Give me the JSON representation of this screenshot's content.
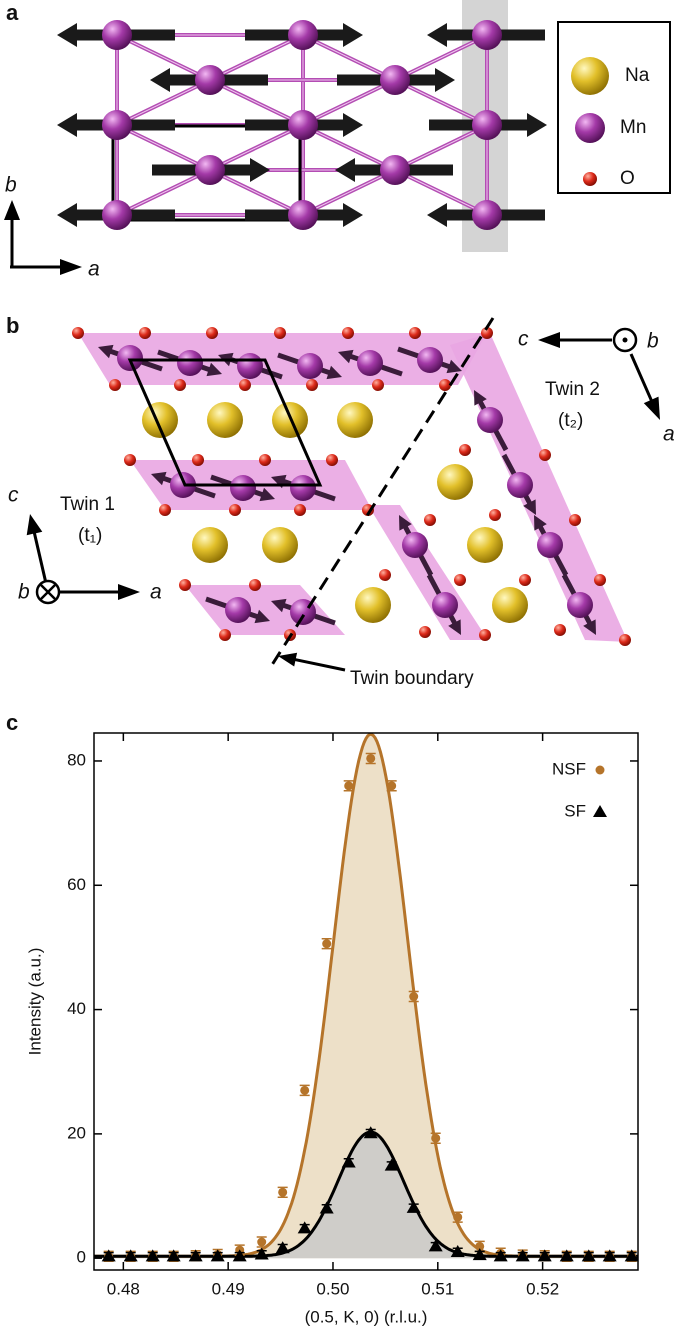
{
  "panel_a": {
    "label": "a",
    "legend": [
      "Na",
      "Mn",
      "O"
    ],
    "axis_b": "b",
    "axis_a": "a"
  },
  "panel_b": {
    "label": "b",
    "compass_left": {
      "c": "c",
      "b": "b",
      "a": "a"
    },
    "compass_right": {
      "c": "c",
      "b": "b",
      "a": "a"
    },
    "twin1": "Twin 1",
    "twin1_sub": "(t₁)",
    "twin2": "Twin 2",
    "twin2_sub": "(t₂)",
    "boundary": "Twin boundary"
  },
  "chart_data": {
    "type": "scatter",
    "panel_label": "c",
    "x_label": "(0.5, K, 0) (r.l.u.)",
    "y_label": "Intensity (a.u.)",
    "xlim": [
      0.4772,
      0.5291
    ],
    "ylim": [
      -1.9,
      84.5
    ],
    "xticks": [
      0.48,
      0.49,
      {
        "value": 0.5,
        "label": "0.50"
      },
      0.51,
      0.52
    ],
    "yticks": [
      0,
      20,
      40,
      60,
      80
    ],
    "legend": "upper right",
    "x": [
      0.4786,
      0.4807,
      0.4828,
      0.4848,
      0.4869,
      0.489,
      0.4911,
      0.4932,
      0.4952,
      0.4973,
      0.4994,
      0.5015,
      0.5036,
      0.5056,
      0.5077,
      0.5098,
      0.5119,
      0.514,
      0.516,
      0.5181,
      0.5202,
      0.5223,
      0.5244,
      0.5264,
      0.5285
    ],
    "series": [
      {
        "name": "NSF",
        "color": "#b5742a",
        "fill": "#ede0c8",
        "marker": "circle",
        "values": [
          0.3,
          0.3,
          0.3,
          0.3,
          0.4,
          0.6,
          1.3,
          2.6,
          10.6,
          27.0,
          50.6,
          76.0,
          80.4,
          76.0,
          42.1,
          19.3,
          6.6,
          1.9,
          0.8,
          0.5,
          0.4,
          0.3,
          0.3,
          0.3,
          0.3
        ],
        "errors": [
          0.8,
          0.8,
          0.8,
          0.8,
          0.8,
          0.8,
          0.8,
          0.8,
          0.8,
          0.8,
          0.8,
          0.8,
          0.8,
          0.8,
          0.8,
          0.8,
          0.8,
          0.8,
          0.8,
          0.8,
          0.8,
          0.8,
          0.8,
          0.8,
          0.8
        ],
        "fit": {
          "center": 0.5036,
          "amplitude": 84.0,
          "sigma": 0.00353,
          "baseline": 0.3
        }
      },
      {
        "name": "SF",
        "color": "#000000",
        "fill": "#c9c9c9",
        "marker": "triangle",
        "values": [
          0.3,
          0.3,
          0.3,
          0.3,
          0.3,
          0.3,
          0.3,
          0.6,
          1.6,
          4.8,
          8.0,
          15.4,
          20.1,
          14.9,
          8.1,
          1.9,
          1.0,
          0.5,
          0.3,
          0.3,
          0.3,
          0.3,
          0.3,
          0.3,
          0.3
        ],
        "errors": [
          0.6,
          0.6,
          0.6,
          0.6,
          0.6,
          0.6,
          0.6,
          0.6,
          0.6,
          0.6,
          0.6,
          0.6,
          0.6,
          0.6,
          0.6,
          0.6,
          0.6,
          0.6,
          0.6,
          0.6,
          0.6,
          0.6,
          0.6,
          0.6,
          0.6
        ],
        "fit": {
          "center": 0.5036,
          "amplitude": 20.0,
          "sigma": 0.00312,
          "baseline": 0.3
        }
      }
    ]
  }
}
